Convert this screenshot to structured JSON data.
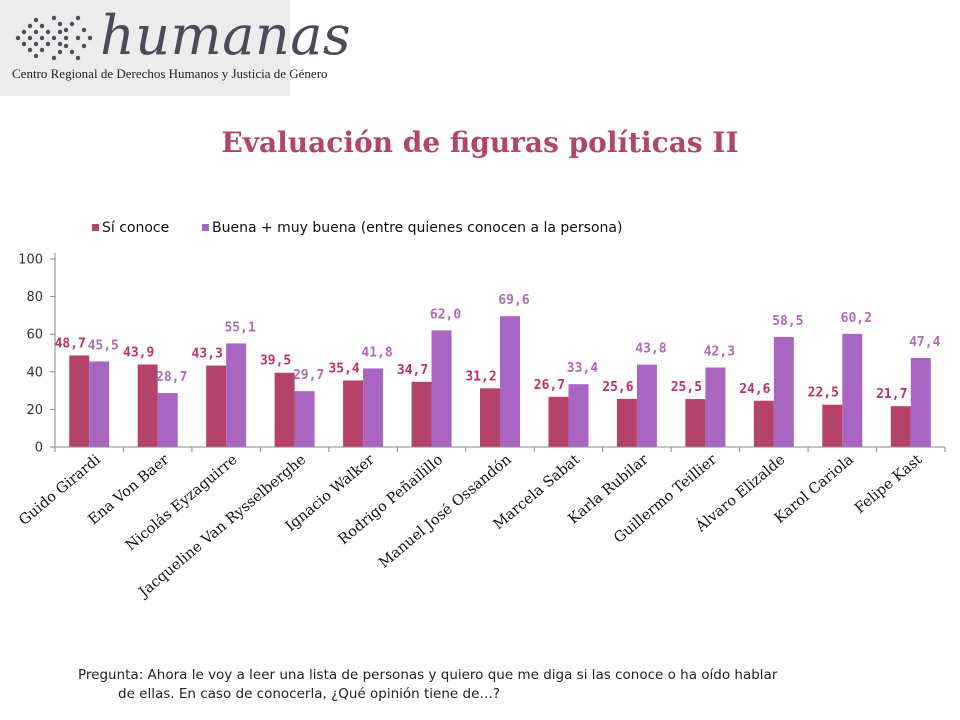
{
  "logo": {
    "wordmark": "humanas",
    "subtitle": "Centro Regional de Derechos Humanos y Justicia de Género"
  },
  "title": "Evaluación de figuras políticas II",
  "footnote": {
    "line1": "Pregunta: Ahora le voy a leer una lista de personas y quiero que me diga si las conoce o ha oído hablar",
    "line2": "de ellas. En caso de conocerla, ¿Qué opinión tiene de…?"
  },
  "colors": {
    "series1": "#b5426a",
    "series2": "#a866c2",
    "label1": "#c0306a",
    "label2": "#b06ab8",
    "title": "#b3446c"
  },
  "chart_data": {
    "type": "bar",
    "categories": [
      "Guido Girardi",
      "Ena Von Baer",
      "Nicolás Eyzaguirre",
      "Jacqueline Van Rysselberghe",
      "Ignacio Walker",
      "Rodrigo Peñailillo",
      "Manuel José Ossandón",
      "Marcela Sabat",
      "Karla Rubilar",
      "Guillermo Teillier",
      "Álvaro Elizalde",
      "Karol Cariola",
      "Felipe Kast"
    ],
    "series": [
      {
        "name": "Sí conoce",
        "values": [
          48.7,
          43.9,
          43.3,
          39.5,
          35.4,
          34.7,
          31.2,
          26.7,
          25.6,
          25.5,
          24.6,
          22.5,
          21.7
        ],
        "labels": [
          "48,7",
          "43,9",
          "43,3",
          "39,5",
          "35,4",
          "34,7",
          "31,2",
          "26,7",
          "25,6",
          "25,5",
          "24,6",
          "22,5",
          "21,7"
        ]
      },
      {
        "name": "Buena + muy buena (entre quienes conocen a la persona)",
        "values": [
          45.5,
          28.7,
          55.1,
          29.7,
          41.8,
          62.0,
          69.6,
          33.4,
          43.8,
          42.3,
          58.5,
          60.2,
          47.4
        ],
        "labels": [
          "45,5",
          "28,7",
          "55,1",
          "29,7",
          "41,8",
          "62,0",
          "69,6",
          "33,4",
          "43,8",
          "42,3",
          "58,5",
          "60,2",
          "47,4"
        ]
      }
    ],
    "ylim": [
      0,
      100
    ],
    "yticks": [
      0,
      20,
      40,
      60,
      80,
      100
    ],
    "legend_position": "top-left",
    "grid": false
  }
}
